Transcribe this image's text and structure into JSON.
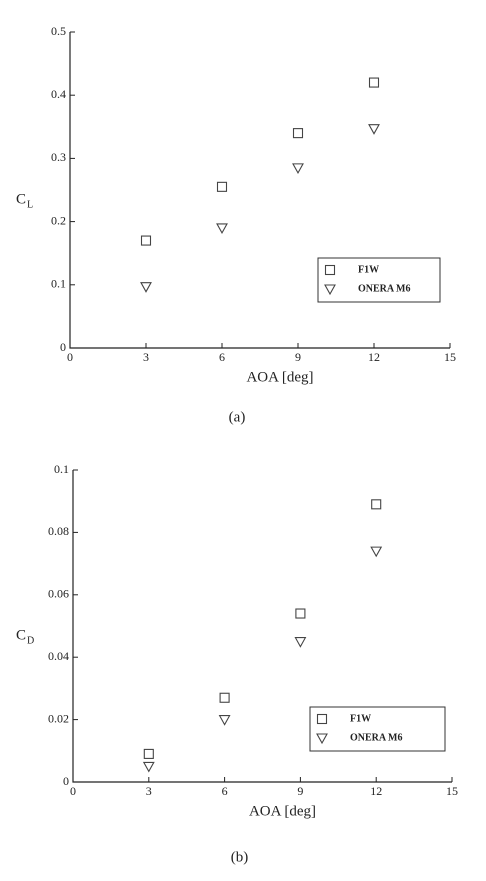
{
  "chart_data": [
    {
      "type": "scatter",
      "caption": "(a)",
      "xlabel": "AOA [deg]",
      "ylabel": "C",
      "ylabel_subscript": "L",
      "xlim": [
        0,
        15
      ],
      "xticks": [
        0,
        3,
        6,
        9,
        12,
        15
      ],
      "ylim": [
        0,
        0.5
      ],
      "yticks": [
        0,
        0.1,
        0.2,
        0.3,
        0.4,
        0.5
      ],
      "legend": "lower right",
      "series": [
        {
          "name": "F1W",
          "color": "#444444",
          "marker": "square",
          "x": [
            3,
            6,
            9,
            12
          ],
          "values": [
            0.17,
            0.255,
            0.34,
            0.42
          ]
        },
        {
          "name": "ONERA M6",
          "color": "#444444",
          "marker": "triangle-down",
          "x": [
            3,
            6,
            9,
            12
          ],
          "values": [
            0.097,
            0.19,
            0.285,
            0.347
          ]
        }
      ]
    },
    {
      "type": "scatter",
      "caption": "(b)",
      "xlabel": "AOA [deg]",
      "ylabel": "C",
      "ylabel_subscript": "D",
      "xlim": [
        0,
        15
      ],
      "xticks": [
        0,
        3,
        6,
        9,
        12,
        15
      ],
      "ylim": [
        0,
        0.1
      ],
      "yticks": [
        0,
        0.02,
        0.04,
        0.06,
        0.08,
        0.1
      ],
      "legend": "lower right",
      "series": [
        {
          "name": "F1W",
          "color": "#444444",
          "marker": "square",
          "x": [
            3,
            6,
            9,
            12
          ],
          "values": [
            0.009,
            0.027,
            0.054,
            0.089
          ]
        },
        {
          "name": "ONERA M6",
          "color": "#444444",
          "marker": "triangle-down",
          "x": [
            3,
            6,
            9,
            12
          ],
          "values": [
            0.005,
            0.02,
            0.045,
            0.074
          ]
        }
      ]
    }
  ]
}
